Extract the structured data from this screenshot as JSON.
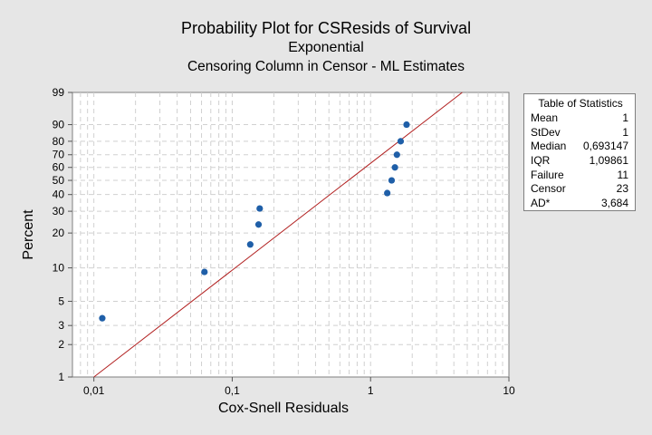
{
  "chart_data": {
    "type": "scatter",
    "title": "Probability Plot for CSResids of Survival",
    "subtitle": "Exponential",
    "subtitle2": "Censoring Column in Censor - ML Estimates",
    "xlabel": "Cox-Snell Residuals",
    "ylabel": "Percent",
    "x_scale": "log",
    "y_scale": "exponential-probability",
    "xlim": [
      0.007,
      10
    ],
    "ylim": [
      1,
      99
    ],
    "x_ticks": [
      {
        "value": 0.01,
        "label": "0,01"
      },
      {
        "value": 0.1,
        "label": "0,1"
      },
      {
        "value": 1,
        "label": "1"
      },
      {
        "value": 10,
        "label": "10"
      }
    ],
    "y_ticks": [
      {
        "value": 1,
        "label": "1"
      },
      {
        "value": 2,
        "label": "2"
      },
      {
        "value": 3,
        "label": "3"
      },
      {
        "value": 5,
        "label": "5"
      },
      {
        "value": 10,
        "label": "10"
      },
      {
        "value": 20,
        "label": "20"
      },
      {
        "value": 30,
        "label": "30"
      },
      {
        "value": 40,
        "label": "40"
      },
      {
        "value": 50,
        "label": "50"
      },
      {
        "value": 60,
        "label": "60"
      },
      {
        "value": 70,
        "label": "70"
      },
      {
        "value": 80,
        "label": "80"
      },
      {
        "value": 90,
        "label": "90"
      },
      {
        "value": 99,
        "label": "99"
      }
    ],
    "points": [
      {
        "x": 0.0115,
        "y": 3.5
      },
      {
        "x": 0.063,
        "y": 9.2
      },
      {
        "x": 0.135,
        "y": 16
      },
      {
        "x": 0.155,
        "y": 23.5
      },
      {
        "x": 0.158,
        "y": 31.5
      },
      {
        "x": 1.32,
        "y": 41
      },
      {
        "x": 1.42,
        "y": 50
      },
      {
        "x": 1.5,
        "y": 60
      },
      {
        "x": 1.55,
        "y": 70
      },
      {
        "x": 1.65,
        "y": 80
      },
      {
        "x": 1.82,
        "y": 90
      }
    ],
    "fit_line": {
      "from": {
        "x": 0.01,
        "y": 1
      },
      "to": {
        "x": 4.6,
        "y": 99
      }
    },
    "grid": true,
    "legend": "none"
  },
  "stats_table": {
    "title": "Table of Statistics",
    "rows": [
      {
        "label": "Mean",
        "value": "1"
      },
      {
        "label": "StDev",
        "value": "1"
      },
      {
        "label": "Median",
        "value": "0,693147"
      },
      {
        "label": "IQR",
        "value": "1,09861"
      },
      {
        "label": "Failure",
        "value": "11"
      },
      {
        "label": "Censor",
        "value": "23"
      },
      {
        "label": "AD*",
        "value": "3,684"
      }
    ]
  },
  "colors": {
    "point": "#1f5fa8",
    "fit_line": "#b22222",
    "grid": "#d0d0d0",
    "background": "#e6e6e6",
    "plot_area": "#ffffff"
  }
}
